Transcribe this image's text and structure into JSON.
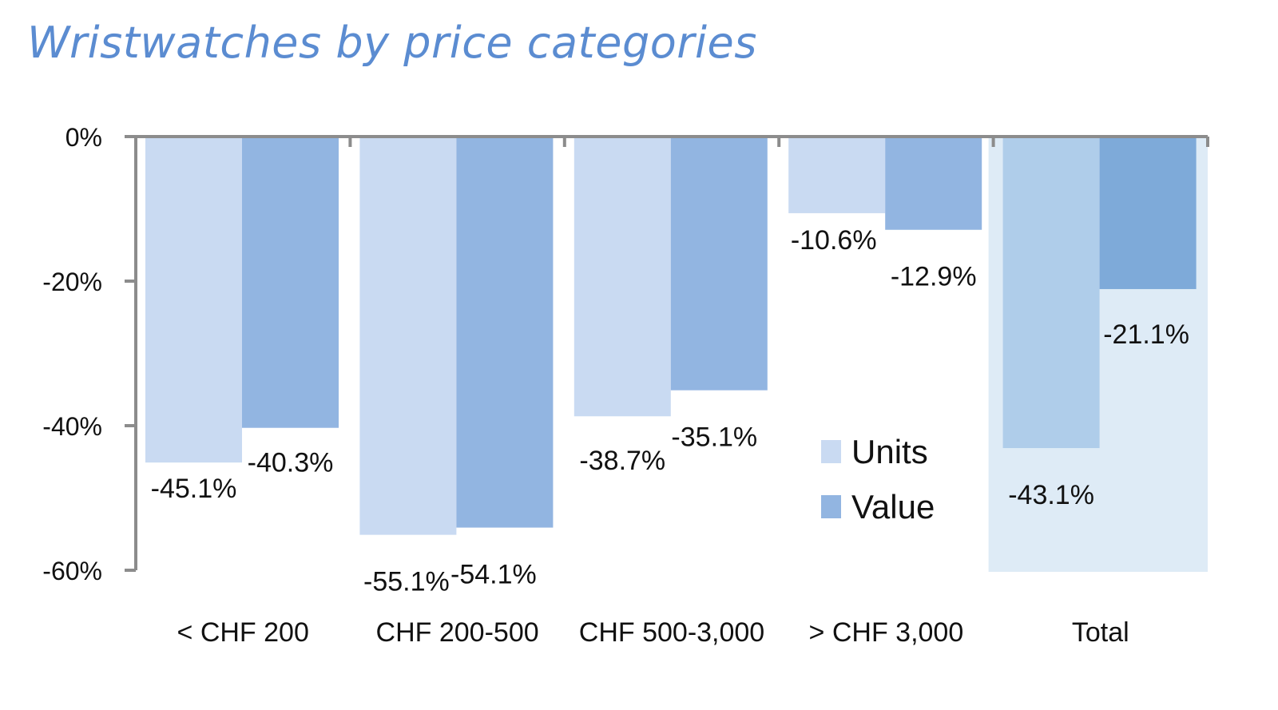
{
  "chart_data": {
    "type": "bar",
    "title": "Wristwatches by price categories",
    "categories": [
      "< CHF 200",
      "CHF 200-500",
      "CHF 500-3,000",
      "> CHF 3,000",
      "Total"
    ],
    "series": [
      {
        "name": "Units",
        "values": [
          -45.1,
          -55.1,
          -38.7,
          -10.6,
          -43.1
        ],
        "labels": [
          "-45.1%",
          "-55.1%",
          "-38.7%",
          "-10.6%",
          "-43.1%"
        ]
      },
      {
        "name": "Value",
        "values": [
          -40.3,
          -54.1,
          -35.1,
          -12.9,
          -21.1
        ],
        "labels": [
          "-40.3%",
          "-54.1%",
          "-35.1%",
          "-12.9%",
          "-21.1%"
        ]
      }
    ],
    "yticks": [
      "0%",
      "-20%",
      "-40%",
      "-60%"
    ],
    "ytick_values": [
      0,
      -20,
      -40,
      -60
    ],
    "ylim": [
      -60,
      0
    ],
    "xlabel": "",
    "ylabel": "",
    "legend_position": "right",
    "highlighted_category": "Total",
    "grid": false
  },
  "colors": {
    "title": "#5B8CD1",
    "units": "#C9DAF2",
    "value": "#92B5E1",
    "total_units": "#AFCDEA",
    "total_value": "#7EAAD9",
    "highlight_band": "#DEEBF6",
    "axis": "#8C8C8C"
  }
}
